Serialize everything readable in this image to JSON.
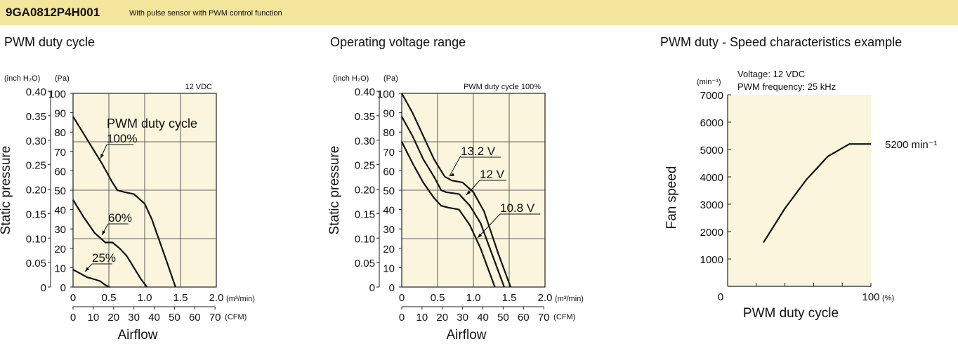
{
  "header": {
    "model": "9GA0812P4H001",
    "description": "With pulse sensor with PWM control function"
  },
  "chart_data": [
    {
      "type": "line",
      "title": "PWM duty cycle",
      "annotation": "12 VDC",
      "series_label": "PWM duty cycle",
      "xlabel": "Airflow",
      "ylabel": "Static pressure",
      "x_unit_primary": "(m³/min)",
      "x_unit_secondary": "(CFM)",
      "y_unit_secondary": "(inch H₂O)",
      "y_unit_primary": "(Pa)",
      "xlim": [
        0,
        2.0
      ],
      "ylim": [
        0,
        100
      ],
      "x_ticks": [
        "0",
        "0.5",
        "1.0",
        "1.5",
        "2.0"
      ],
      "x_ticks_cfm": [
        "0",
        "10",
        "20",
        "30",
        "40",
        "50",
        "60",
        "70"
      ],
      "y_ticks": [
        "0",
        "10",
        "20",
        "30",
        "40",
        "50",
        "60",
        "70",
        "80",
        "90",
        "100"
      ],
      "y_ticks_inch": [
        "0",
        "0.05",
        "0.10",
        "0.15",
        "0.20",
        "0.25",
        "0.30",
        "0.35",
        "0.40"
      ],
      "series": [
        {
          "name": "100%",
          "x": [
            0,
            0.2,
            0.4,
            0.55,
            0.62,
            0.72,
            0.85,
            1.0,
            1.1,
            1.3,
            1.43
          ],
          "y": [
            88,
            76,
            64,
            54,
            50,
            49,
            48,
            43,
            35,
            14,
            0
          ]
        },
        {
          "name": "60%",
          "x": [
            0,
            0.15,
            0.3,
            0.45,
            0.55,
            0.65,
            0.75,
            0.85,
            0.95,
            1.03
          ],
          "y": [
            45,
            36,
            28,
            23,
            23,
            20,
            16,
            10,
            4,
            0
          ]
        },
        {
          "name": "25%",
          "x": [
            0,
            0.1,
            0.2,
            0.3,
            0.38,
            0.45,
            0.51
          ],
          "y": [
            9,
            7,
            5,
            4,
            3,
            1,
            0
          ]
        }
      ]
    },
    {
      "type": "line",
      "title": "Operating voltage range",
      "annotation": "PWM duty cycle 100%",
      "xlabel": "Airflow",
      "ylabel": "Static pressure",
      "x_unit_primary": "(m³/min)",
      "x_unit_secondary": "(CFM)",
      "y_unit_secondary": "(inch H₂O)",
      "y_unit_primary": "(Pa)",
      "xlim": [
        0,
        2.0
      ],
      "ylim": [
        0,
        100
      ],
      "x_ticks": [
        "0",
        "0.5",
        "1.0",
        "1.5",
        "2.0"
      ],
      "x_ticks_cfm": [
        "0",
        "10",
        "20",
        "30",
        "40",
        "50",
        "60",
        "70"
      ],
      "y_ticks": [
        "0",
        "10",
        "20",
        "30",
        "40",
        "50",
        "60",
        "70",
        "80",
        "90",
        "100"
      ],
      "y_ticks_inch": [
        "0",
        "0.05",
        "0.10",
        "0.15",
        "0.20",
        "0.25",
        "0.30",
        "0.35",
        "0.40"
      ],
      "series": [
        {
          "name": "13.2 V",
          "x": [
            0,
            0.15,
            0.3,
            0.45,
            0.6,
            0.7,
            0.85,
            1.0,
            1.15,
            1.35,
            1.52
          ],
          "y": [
            100,
            90,
            78,
            66,
            57,
            55,
            54,
            49,
            39,
            17,
            0
          ]
        },
        {
          "name": "12 V",
          "x": [
            0,
            0.15,
            0.3,
            0.45,
            0.55,
            0.62,
            0.8,
            0.95,
            1.1,
            1.3,
            1.43
          ],
          "y": [
            88,
            78,
            66,
            57,
            50,
            49,
            48,
            42,
            33,
            13,
            0
          ]
        },
        {
          "name": "10.8 V",
          "x": [
            0,
            0.15,
            0.3,
            0.45,
            0.55,
            0.65,
            0.8,
            0.95,
            1.1,
            1.3
          ],
          "y": [
            75,
            64,
            54,
            46,
            42,
            41,
            40,
            32,
            20,
            0
          ]
        }
      ]
    },
    {
      "type": "line",
      "title": "PWM duty - Speed characteristics example",
      "annotations": [
        "Voltage: 12 VDC",
        "PWM frequency: 25 kHz"
      ],
      "end_label": "5200 min⁻¹",
      "xlabel": "PWM duty cycle",
      "ylabel": "Fan speed",
      "x_unit": "(%)",
      "y_unit": "(min⁻¹)",
      "xlim": [
        0,
        100
      ],
      "ylim": [
        0,
        7000
      ],
      "x_tick_labels": {
        "start": "0",
        "end": "100"
      },
      "y_ticks": [
        "1000",
        "2000",
        "3000",
        "4000",
        "5000",
        "6000",
        "7000"
      ],
      "series": [
        {
          "name": "",
          "x": [
            25,
            40,
            55,
            70,
            85,
            90,
            100
          ],
          "y": [
            1600,
            2850,
            3900,
            4750,
            5200,
            5200,
            5200
          ]
        }
      ]
    }
  ]
}
